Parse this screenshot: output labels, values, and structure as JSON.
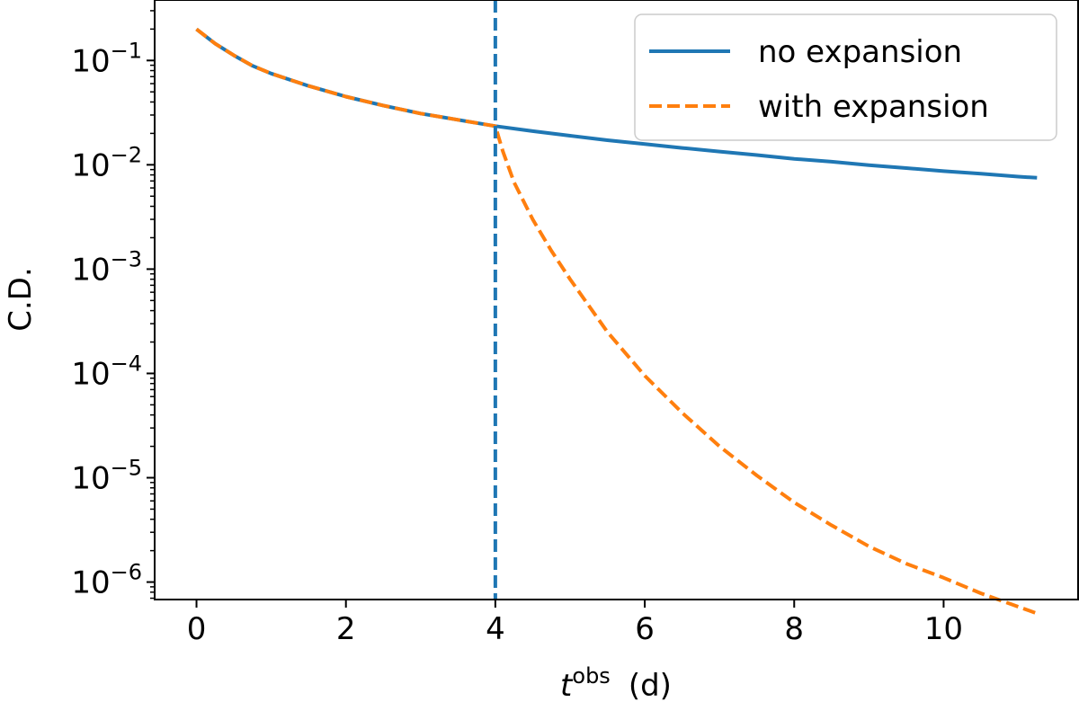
{
  "chart_data": {
    "type": "line",
    "xlabel": {
      "main": "t",
      "sup": "obs",
      "unit": "(d)"
    },
    "ylabel": "C.D.",
    "xlim": [
      -0.56,
      11.8
    ],
    "ylim": [
      6.8e-07,
      0.38
    ],
    "yscale": "log",
    "x_ticks": [
      0,
      2,
      4,
      6,
      8,
      10
    ],
    "y_ticks": [
      {
        "value": 0.1,
        "base": "10",
        "exp": "−1"
      },
      {
        "value": 0.01,
        "base": "10",
        "exp": "−2"
      },
      {
        "value": 0.001,
        "base": "10",
        "exp": "−3"
      },
      {
        "value": 0.0001,
        "base": "10",
        "exp": "−4"
      },
      {
        "value": 1e-05,
        "base": "10",
        "exp": "−5"
      },
      {
        "value": 1e-06,
        "base": "10",
        "exp": "−6"
      }
    ],
    "vline": {
      "x": 4,
      "color": "#1f77b4",
      "style": "dashed"
    },
    "legend": {
      "position": "top-right"
    },
    "series": [
      {
        "name": "no expansion",
        "color": "#1f77b4",
        "style": "solid",
        "x": [
          0,
          0.25,
          0.5,
          0.75,
          1.0,
          1.5,
          2.0,
          2.5,
          3.0,
          3.5,
          4.0,
          4.5,
          5.0,
          5.5,
          6.0,
          6.5,
          7.0,
          7.5,
          8.0,
          8.5,
          9.0,
          9.5,
          10.0,
          10.5,
          11.0,
          11.25
        ],
        "y": [
          0.2,
          0.145,
          0.112,
          0.089,
          0.075,
          0.057,
          0.045,
          0.037,
          0.031,
          0.027,
          0.0235,
          0.021,
          0.019,
          0.0172,
          0.0158,
          0.0145,
          0.0134,
          0.0124,
          0.0114,
          0.0107,
          0.0099,
          0.0093,
          0.0087,
          0.0082,
          0.0077,
          0.0075
        ]
      },
      {
        "name": "with expansion",
        "color": "#ff7f0e",
        "style": "dashed",
        "x": [
          0,
          0.25,
          0.5,
          0.75,
          1.0,
          1.5,
          2.0,
          2.5,
          3.0,
          3.5,
          4.0,
          4.1,
          4.25,
          4.5,
          4.75,
          5.0,
          5.5,
          6.0,
          6.5,
          7.0,
          7.5,
          8.0,
          8.5,
          9.0,
          9.5,
          10.0,
          10.5,
          11.0,
          11.25
        ],
        "y": [
          0.2,
          0.145,
          0.112,
          0.089,
          0.075,
          0.057,
          0.045,
          0.037,
          0.031,
          0.027,
          0.0235,
          0.0135,
          0.0068,
          0.003,
          0.0015,
          0.0008,
          0.00025,
          9.5e-05,
          4.2e-05,
          2e-05,
          1.05e-05,
          5.8e-06,
          3.5e-06,
          2.2e-06,
          1.5e-06,
          1.1e-06,
          7.8e-07,
          5.8e-07,
          5e-07
        ]
      }
    ]
  }
}
